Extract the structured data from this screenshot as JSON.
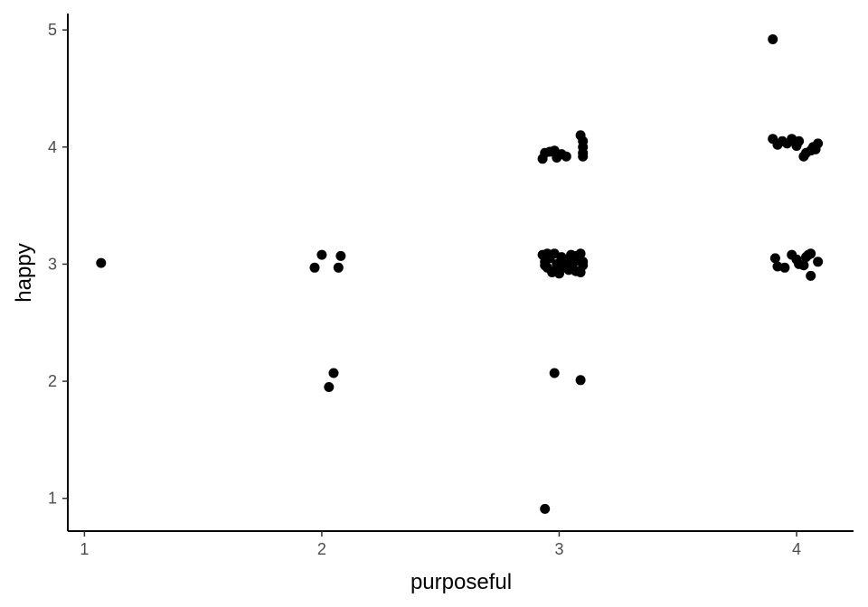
{
  "chart_data": {
    "type": "scatter",
    "title": "",
    "xlabel": "purposeful",
    "ylabel": "happy",
    "xlim": [
      0.93,
      4.24
    ],
    "ylim": [
      0.72,
      5.14
    ],
    "xticks": [
      1,
      2,
      3,
      4
    ],
    "yticks": [
      1,
      2,
      3,
      4,
      5
    ],
    "grid": false,
    "legend": "none",
    "point_color": "#000000",
    "points": [
      [
        1.07,
        3.01
      ],
      [
        1.97,
        2.97
      ],
      [
        2.0,
        3.08
      ],
      [
        2.07,
        2.97
      ],
      [
        2.08,
        3.07
      ],
      [
        2.05,
        2.07
      ],
      [
        2.03,
        1.95
      ],
      [
        2.93,
        3.9
      ],
      [
        2.94,
        3.95
      ],
      [
        2.96,
        3.96
      ],
      [
        2.98,
        3.97
      ],
      [
        2.99,
        3.91
      ],
      [
        3.01,
        3.94
      ],
      [
        3.03,
        3.92
      ],
      [
        3.09,
        4.1
      ],
      [
        3.1,
        4.05
      ],
      [
        3.1,
        4.0
      ],
      [
        3.1,
        3.95
      ],
      [
        3.1,
        3.92
      ],
      [
        2.93,
        3.08
      ],
      [
        2.94,
        3.02
      ],
      [
        2.95,
        2.97
      ],
      [
        2.96,
        3.05
      ],
      [
        2.97,
        2.93
      ],
      [
        2.98,
        3.09
      ],
      [
        2.99,
        3.0
      ],
      [
        3.0,
        2.92
      ],
      [
        3.01,
        3.06
      ],
      [
        3.02,
        2.98
      ],
      [
        3.03,
        3.03
      ],
      [
        3.04,
        2.95
      ],
      [
        3.05,
        3.08
      ],
      [
        3.06,
        3.01
      ],
      [
        3.07,
        2.94
      ],
      [
        3.08,
        3.04
      ],
      [
        3.09,
        3.09
      ],
      [
        3.1,
        2.99
      ],
      [
        3.1,
        3.02
      ],
      [
        3.09,
        2.93
      ],
      [
        2.95,
        3.09
      ],
      [
        2.98,
        2.94
      ],
      [
        3.01,
        2.97
      ],
      [
        3.04,
        3.02
      ],
      [
        3.07,
        3.07
      ],
      [
        2.94,
        2.99
      ],
      [
        3.0,
        3.01
      ],
      [
        2.98,
        2.07
      ],
      [
        3.09,
        2.01
      ],
      [
        2.94,
        0.91
      ],
      [
        3.9,
        4.92
      ],
      [
        3.9,
        4.07
      ],
      [
        3.92,
        4.02
      ],
      [
        3.94,
        4.05
      ],
      [
        3.96,
        4.03
      ],
      [
        3.98,
        4.07
      ],
      [
        4.0,
        4.01
      ],
      [
        4.01,
        4.05
      ],
      [
        4.03,
        3.92
      ],
      [
        4.04,
        3.95
      ],
      [
        4.06,
        3.97
      ],
      [
        4.07,
        4.0
      ],
      [
        4.08,
        3.98
      ],
      [
        4.09,
        4.03
      ],
      [
        3.91,
        3.05
      ],
      [
        3.92,
        2.98
      ],
      [
        3.95,
        2.97
      ],
      [
        3.98,
        3.08
      ],
      [
        4.0,
        3.04
      ],
      [
        4.01,
        3.0
      ],
      [
        4.03,
        2.99
      ],
      [
        4.04,
        3.06
      ],
      [
        4.05,
        3.08
      ],
      [
        4.06,
        3.09
      ],
      [
        4.06,
        2.9
      ],
      [
        4.09,
        3.02
      ]
    ]
  }
}
